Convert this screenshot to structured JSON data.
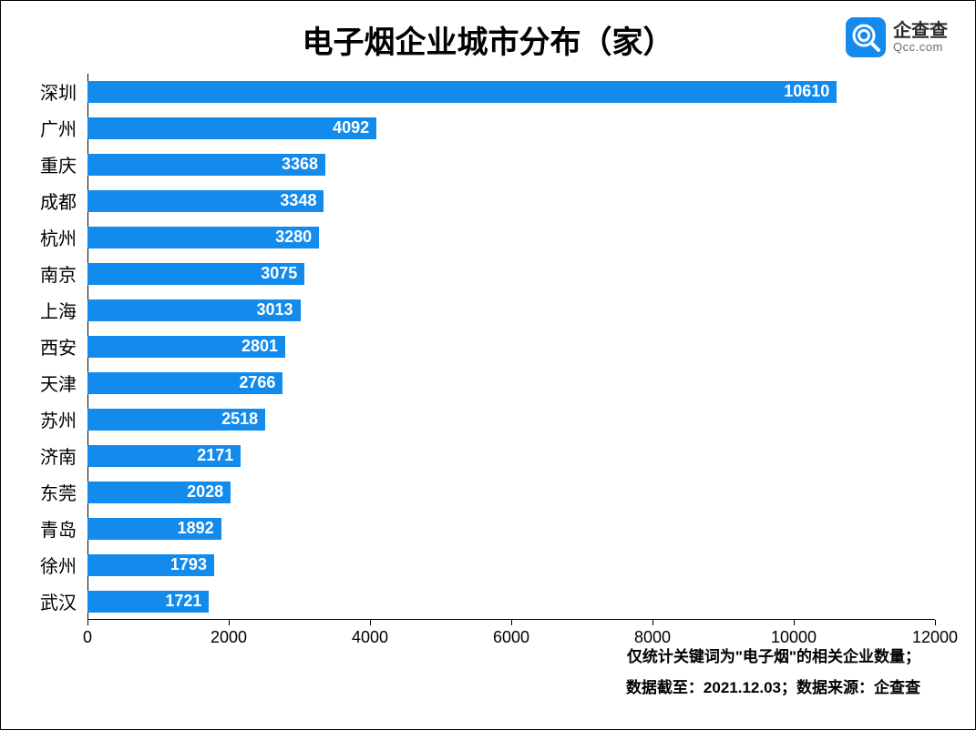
{
  "title": "电子烟企业城市分布（家）",
  "title_fontsize": 34,
  "logo": {
    "cn": "企查查",
    "en": "Qcc.com"
  },
  "chart": {
    "type": "bar-horizontal",
    "bar_color": "#128bed",
    "value_text_color": "#ffffff",
    "background_color": "#ffffff",
    "axis_color": "#000000",
    "xlim": [
      0,
      12000
    ],
    "xtick_step": 2000,
    "xticks": [
      0,
      2000,
      4000,
      6000,
      8000,
      10000,
      12000
    ],
    "bar_height_ratio": 0.62,
    "ylabel_fontsize": 20,
    "xlabel_fontsize": 18,
    "value_fontsize": 18,
    "categories": [
      "深圳",
      "广州",
      "重庆",
      "成都",
      "杭州",
      "南京",
      "上海",
      "西安",
      "天津",
      "苏州",
      "济南",
      "东莞",
      "青岛",
      "徐州",
      "武汉"
    ],
    "values": [
      10610,
      4092,
      3368,
      3348,
      3280,
      3075,
      3013,
      2801,
      2766,
      2518,
      2171,
      2028,
      1892,
      1793,
      1721
    ]
  },
  "footnotes": [
    "仅统计关键词为\"电子烟\"的相关企业数量；",
    "数据截至：2021.12.03；数据来源：企查查"
  ]
}
